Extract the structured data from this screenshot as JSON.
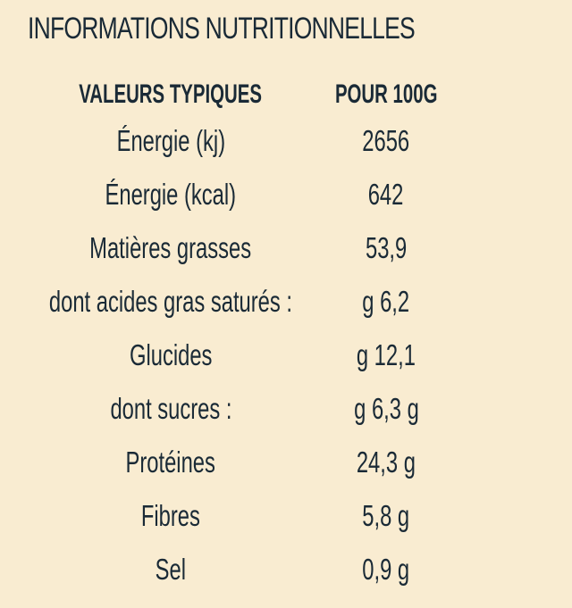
{
  "title": "INFORMATIONS NUTRITIONNELLES",
  "table": {
    "header": {
      "col1": "VALEURS TYPIQUES",
      "col2": "POUR 100G"
    },
    "rows": [
      {
        "label": "Énergie (kj)",
        "value": "2656"
      },
      {
        "label": "Énergie (kcal)",
        "value": "642"
      },
      {
        "label": "Matières grasses",
        "value": "53,9"
      },
      {
        "label": "dont acides gras saturés :",
        "value": "g 6,2"
      },
      {
        "label": "Glucides",
        "value": "g 12,1"
      },
      {
        "label": "dont sucres :",
        "value": "g 6,3 g"
      },
      {
        "label": "Protéines",
        "value": "24,3 g"
      },
      {
        "label": "Fibres",
        "value": "5,8 g"
      },
      {
        "label": "Sel",
        "value": "0,9 g"
      }
    ]
  }
}
